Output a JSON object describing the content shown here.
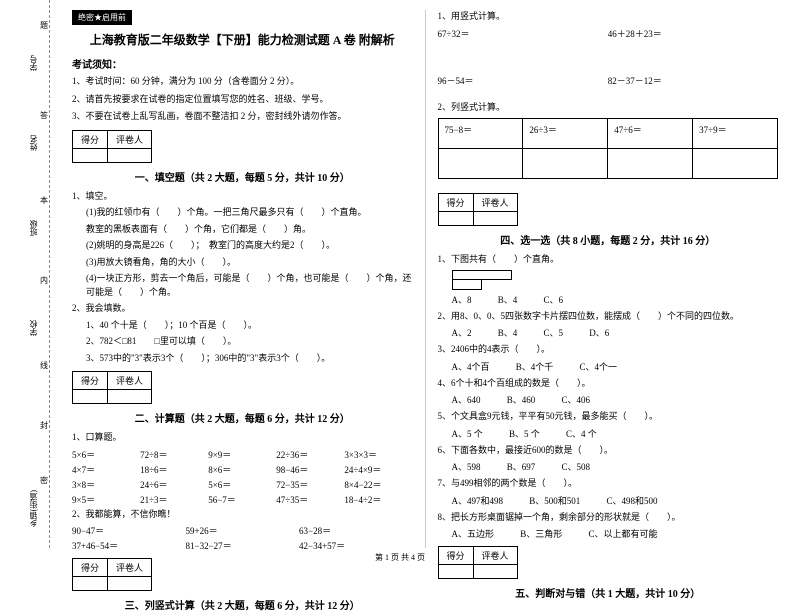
{
  "margin": {
    "labels": [
      "学号",
      "姓名",
      "班级",
      "学校",
      "乡镇(街道)"
    ],
    "dashes": [
      "题",
      "答",
      "本",
      "内",
      "线",
      "封",
      "密"
    ]
  },
  "headerTag": "绝密★启用前",
  "title": "上海教育版二年级数学【下册】能力检测试题 A 卷 附解析",
  "noticeTitle": "考试须知：",
  "notices": [
    "1、考试时间：60 分钟，满分为 100 分（含卷面分 2 分）。",
    "2、请首先按要求在试卷的指定位置填写您的姓名、班级、学号。",
    "3、不要在试卷上乱写乱画，卷面不整洁扣 2 分，密封线外请勿作答。"
  ],
  "scoreHeaders": [
    "得分",
    "评卷人"
  ],
  "sections": {
    "s1": "一、填空题（共 2 大题，每题 5 分，共计 10 分）",
    "s2": "二、计算题（共 2 大题，每题 6 分，共计 12 分）",
    "s3": "三、列竖式计算（共 2 大题，每题 6 分，共计 12 分）",
    "s4": "四、选一选（共 8 小题，每题 2 分，共计 16 分）",
    "s5": "五、判断对与错（共 1 大题，共计 10 分）"
  },
  "fill": {
    "q1": "1、填空。",
    "q1_1": "(1)我的红领巾有（　　）个角。一把三角尺最多只有（　　）个直角。",
    "q1_1b": "教室的黑板表面有（　　）个角，它们都是（　　）角。",
    "q1_2": "(2)姚明的身高是226（　　）；　教室门的高度大约是2（　　）。",
    "q1_3": "(3)用放大镜看角，角的大小（　　）。",
    "q1_4": "(4)一块正方形，剪去一个角后，可能是（　　）个角，也可能是（　　）个角，还可能是（　　）个角。",
    "q2": "2、我会填数。",
    "q2_1": "1、40 个十是（　　）；10 个百是（　　）。",
    "q2_2": "2、782＜□81　　□里可以填（　　）。",
    "q2_3": "3、573中的\"3\"表示3个（　　）；306中的\"3\"表示3个（　　）。"
  },
  "calc": {
    "q1": "1、口算题。",
    "rows": [
      [
        "5×6＝",
        "72÷8＝",
        "9×9＝",
        "22÷36＝",
        "3×3×3＝"
      ],
      [
        "4×7＝",
        "18÷6＝",
        "8×6＝",
        "98−46＝",
        "24÷4×9＝"
      ],
      [
        "3×8＝",
        "24÷6＝",
        "5×6＝",
        "72−35＝",
        "8×4−22＝"
      ],
      [
        "9×5＝",
        "21÷3＝",
        "56−7＝",
        "47÷35＝",
        "18−4÷2＝"
      ]
    ],
    "q2": "2、我都能算，不信你瞧！",
    "rows2": [
      [
        "90−47＝",
        "59+26＝",
        "63−28＝"
      ],
      [
        "37+46−54＝",
        "81−32−27＝",
        "42−34+57＝"
      ]
    ]
  },
  "vert": {
    "q1": "1、用竖式计算。",
    "r1a": "67÷32＝",
    "r1b": "46＋28＋23＝",
    "r2a": "96－54＝",
    "r2b": "82－37－12＝",
    "q2": "2、列竖式计算。",
    "cells": [
      "75−8＝",
      "26÷3＝",
      "47÷6＝",
      "37÷9＝"
    ]
  },
  "choice": {
    "q1": "1、下图共有（　　）个直角。",
    "q1opts": [
      "A、8",
      "B、4",
      "C、6"
    ],
    "q2": "2、用8、0、0、5四张数字卡片摆四位数，能摆成（　　）个不同的四位数。",
    "q2opts": [
      "A、2",
      "B、4",
      "C、5",
      "D、6"
    ],
    "q3": "3、2406中的4表示（　　）。",
    "q3opts": [
      "A、4个百",
      "B、4个千",
      "C、4个一"
    ],
    "q4": "4、6个十和4个百组成的数是（　　）。",
    "q4opts": [
      "A、640",
      "B、460",
      "C、406"
    ],
    "q5": "5、个文具盒9元钱，平平有50元钱，最多能买（　　）。",
    "q5opts": [
      "A、5 个",
      "B、5 个",
      "C、4 个"
    ],
    "q6": "6、下面各数中，最接近600的数是（　　）。",
    "q6opts": [
      "A、598",
      "B、697",
      "C、508"
    ],
    "q7": "7、与499相邻的两个数是（　　）。",
    "q7opts": [
      "A、497和498",
      "B、500和501",
      "C、498和500"
    ],
    "q8": "8、把长方形桌面锯掉一个角，剩余部分的形状就是（　　）。",
    "q8opts": [
      "A、五边形",
      "B、三角形",
      "C、以上都有可能"
    ]
  },
  "footer": "第 1 页 共 4 页"
}
